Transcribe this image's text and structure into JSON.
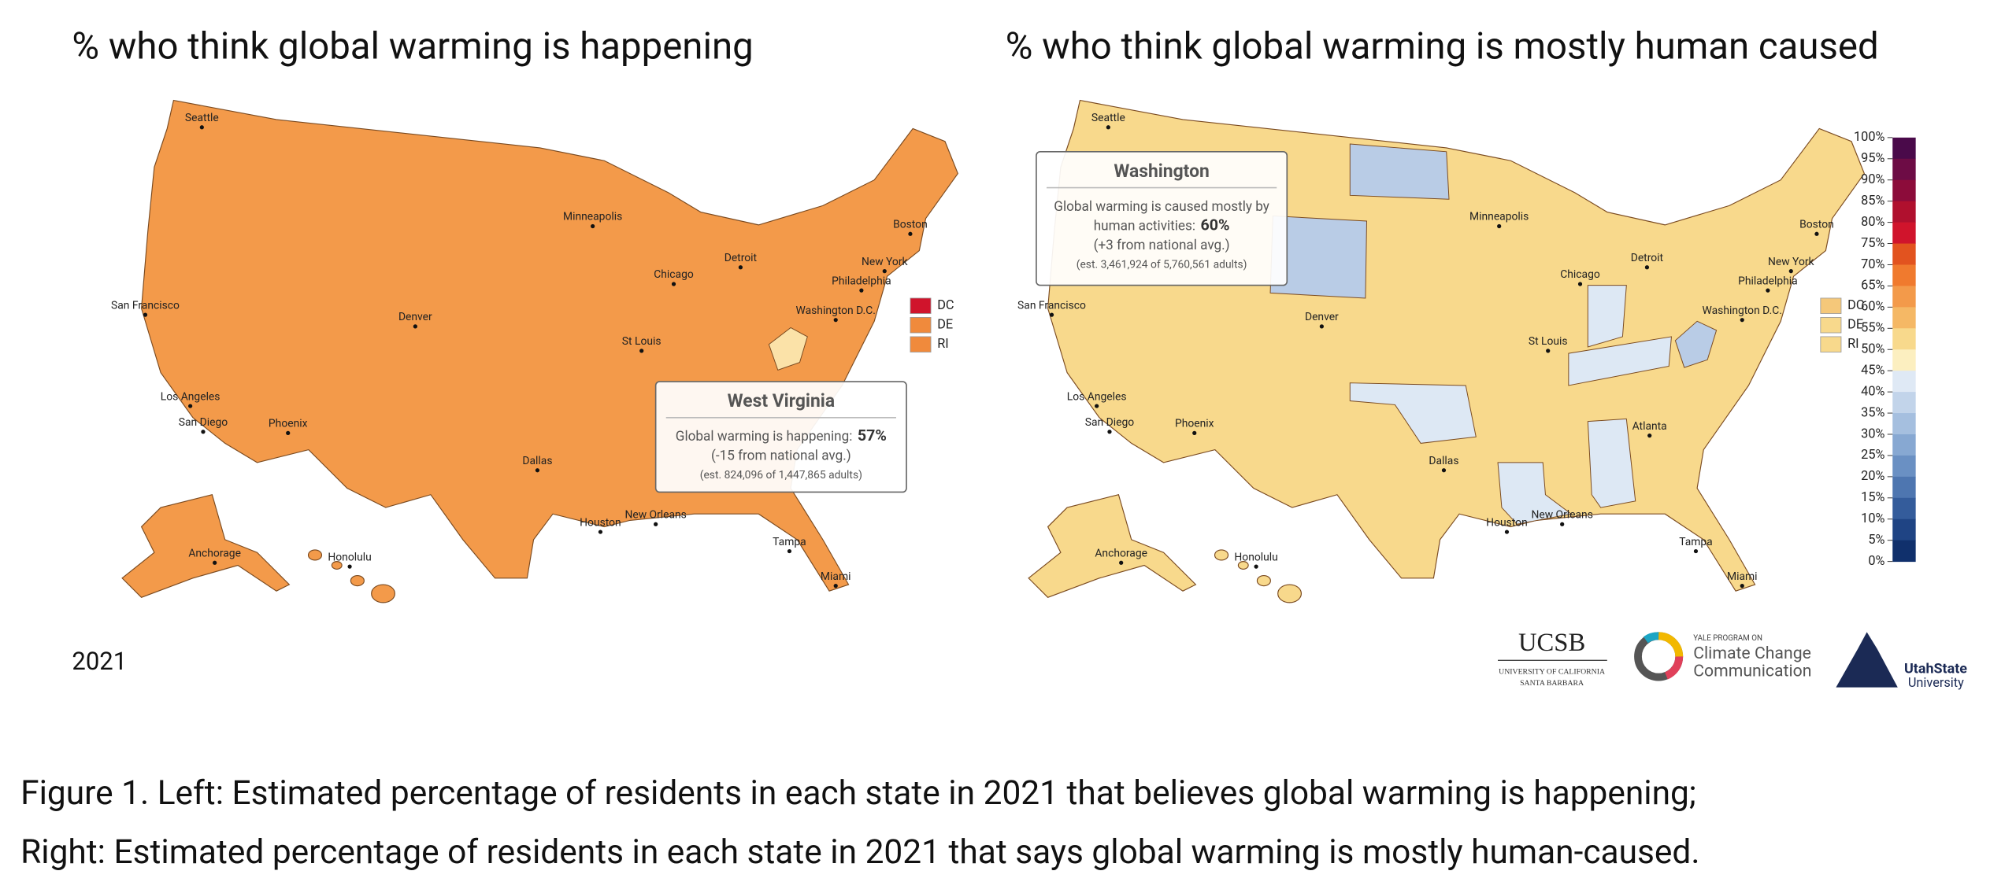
{
  "left_map": {
    "title": "% who think global warming is happening",
    "fill": "#f39a4a",
    "year": "2021",
    "cities": [
      "Seattle",
      "San Francisco",
      "Los Angeles",
      "San Diego",
      "Phoenix",
      "Denver",
      "Dallas",
      "Houston",
      "Minneapolis",
      "Chicago",
      "Detroit",
      "St Louis",
      "New Orleans",
      "Tampa",
      "Miami",
      "Boston",
      "New York",
      "Philadelphia",
      "Washington D.C.",
      "Anchorage",
      "Honolulu"
    ],
    "small_states": [
      {
        "label": "DC",
        "color": "#d0142c"
      },
      {
        "label": "DE",
        "color": "#f08a3c"
      },
      {
        "label": "RI",
        "color": "#f08a3c"
      }
    ],
    "tooltip": {
      "title": "West Virginia",
      "lines": [
        {
          "text": "Global warming is happening:",
          "value": "57%"
        },
        {
          "text": "(-15 from national avg.)"
        },
        {
          "text": "(est. 824,096 of 1,447,865 adults)"
        }
      ]
    }
  },
  "right_map": {
    "title": "% who think global warming is mostly human caused",
    "fill": "#f8d98c",
    "cities": [
      "Seattle",
      "San Francisco",
      "Los Angeles",
      "San Diego",
      "Phoenix",
      "Denver",
      "Dallas",
      "Houston",
      "Minneapolis",
      "Chicago",
      "Detroit",
      "St Louis",
      "New Orleans",
      "Tampa",
      "Miami",
      "Boston",
      "New York",
      "Philadelphia",
      "Washington D.C.",
      "Anchorage",
      "Honolulu",
      "Atlanta"
    ],
    "small_states": [
      {
        "label": "DC",
        "color": "#f5c87a"
      },
      {
        "label": "DE",
        "color": "#f8d98c"
      },
      {
        "label": "RI",
        "color": "#f8d98c"
      }
    ],
    "tooltip": {
      "title": "Washington",
      "lines": [
        {
          "text": "Global warming is caused mostly by"
        },
        {
          "text": "human activities:",
          "value": "60%"
        },
        {
          "text": "(+3 from national avg.)"
        },
        {
          "text": "(est. 3,461,924 of 5,760,561 adults)"
        }
      ]
    },
    "scale": {
      "labels": [
        "100%",
        "95%",
        "90%",
        "85%",
        "80%",
        "75%",
        "70%",
        "65%",
        "60%",
        "55%",
        "50%",
        "45%",
        "40%",
        "35%",
        "30%",
        "25%",
        "20%",
        "15%",
        "10%",
        "5%",
        "0%"
      ],
      "colors": [
        "#4a0a4a",
        "#6d0c45",
        "#8c0c3a",
        "#b0102e",
        "#d0142c",
        "#e2531f",
        "#f07a2e",
        "#f39a4a",
        "#f5b865",
        "#f8d98c",
        "#fcefc0",
        "#dfe9f5",
        "#c2d4ea",
        "#a5bfdf",
        "#87a8d2",
        "#6a90c3",
        "#4e76b0",
        "#345c9b",
        "#1f4484",
        "#10306c"
      ]
    }
  },
  "logos": {
    "ucsb": "UCSB",
    "ucsb_sub1": "UNIVERSITY OF CALIFORNIA",
    "ucsb_sub2": "SANTA BARBARA",
    "yale_top": "YALE PROGRAM ON",
    "yale_1": "Climate Change",
    "yale_2": "Communication",
    "usu_1": "UtahState",
    "usu_2": "University"
  },
  "caption": [
    "Figure 1. Left: Estimated percentage of residents in each state in 2021 that believes global warming is happening;",
    "Right: Estimated  percentage of residents in each state in 2021 that says global warming is mostly human-caused."
  ]
}
